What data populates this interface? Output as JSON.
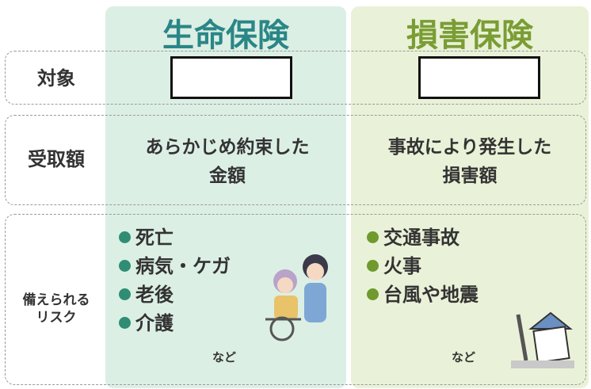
{
  "columns": [
    "生命保険",
    "損害保険"
  ],
  "rows": [
    {
      "label": [
        "対象"
      ],
      "cells": [
        [],
        []
      ]
    },
    {
      "label": [
        "受取額"
      ],
      "cells": [
        [
          "あらかじめ約束した",
          "金額"
        ],
        [
          "事故により発生した",
          "損害額"
        ]
      ]
    },
    {
      "label": [
        "備えられる",
        "リスク"
      ],
      "cells": [
        [
          "死亡",
          "病気・ケガ",
          "老後",
          "介護"
        ],
        [
          "交通事故",
          "火事",
          "台風や地震"
        ]
      ],
      "note": [
        "など",
        "など"
      ]
    }
  ]
}
